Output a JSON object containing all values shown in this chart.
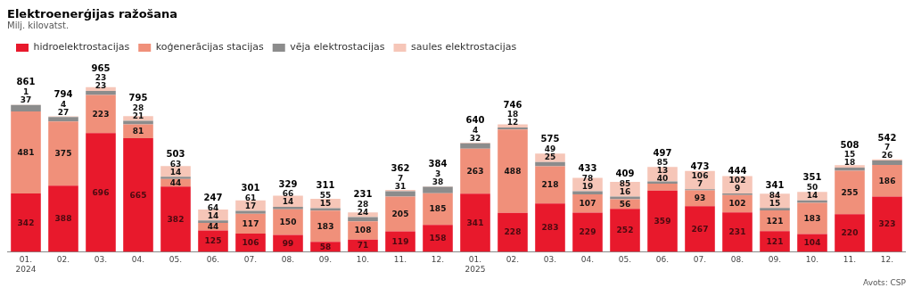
{
  "chart_data": {
    "type": "bar",
    "title": "Elektroenerģijas ražošana",
    "subtitle": "Milj. kilovatst.",
    "stacked": true,
    "data_labels": true,
    "legend": "top left",
    "grid": false,
    "categories": [
      "01.\n2024",
      "02.",
      "03.",
      "04.",
      "05.",
      "06.",
      "07.",
      "08.",
      "09.",
      "10.",
      "11.",
      "12.",
      "01.\n2025",
      "02.",
      "03.",
      "04.",
      "05.",
      "06.",
      "07.",
      "08.",
      "09.",
      "10.",
      "11.",
      "12."
    ],
    "series": [
      {
        "name": "hidroelektrostacijas",
        "color": "#e8192c",
        "values": [
          342,
          388,
          696,
          665,
          382,
          125,
          106,
          99,
          58,
          71,
          119,
          158,
          341,
          228,
          283,
          229,
          252,
          359,
          267,
          231,
          121,
          104,
          220,
          323
        ]
      },
      {
        "name": "koģenerācijas stacijas",
        "color": "#f0907a",
        "values": [
          481,
          375,
          223,
          81,
          44,
          44,
          117,
          150,
          183,
          108,
          205,
          185,
          263,
          488,
          218,
          107,
          56,
          40,
          93,
          102,
          121,
          183,
          255,
          186
        ]
      },
      {
        "name": "vēja elektrostacijas",
        "color": "#8c8c8c",
        "values": [
          37,
          27,
          23,
          21,
          14,
          14,
          17,
          14,
          15,
          24,
          31,
          38,
          32,
          12,
          25,
          19,
          16,
          13,
          7,
          9,
          15,
          14,
          18,
          26
        ]
      },
      {
        "name": "saules elektrostacijas",
        "color": "#f6c6b8",
        "values": [
          1,
          4,
          23,
          28,
          63,
          64,
          61,
          66,
          55,
          28,
          7,
          3,
          4,
          18,
          49,
          78,
          85,
          85,
          106,
          102,
          84,
          50,
          15,
          7
        ]
      }
    ],
    "totals": [
      "861",
      "794",
      "965",
      "795",
      "503",
      "247",
      "301",
      "329",
      "311",
      "231",
      "362",
      "384",
      "640",
      "746",
      "575",
      "433",
      "409",
      "497",
      "473",
      "444",
      "341",
      "351",
      "508",
      "542"
    ],
    "annotations": [
      "Avots: CSP"
    ]
  }
}
